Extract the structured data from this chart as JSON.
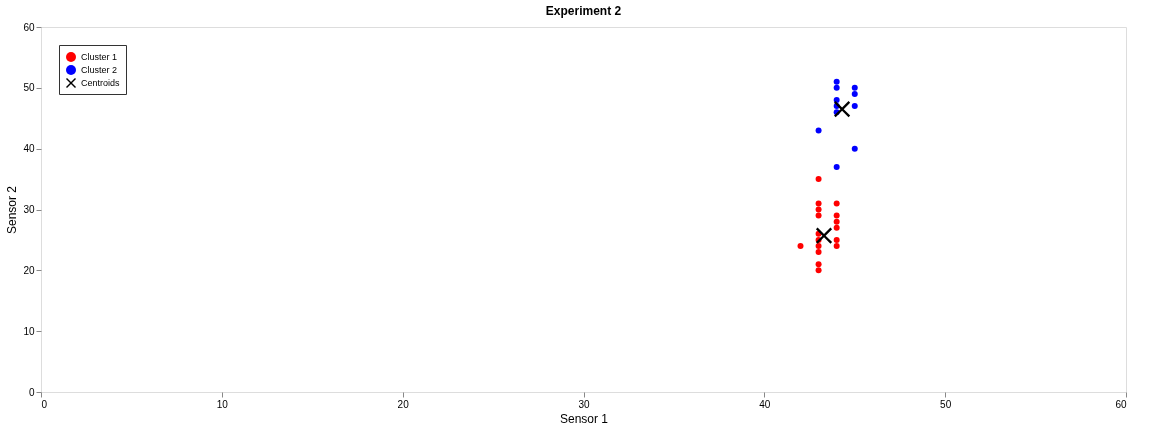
{
  "chart_data": {
    "type": "scatter",
    "title": "Experiment 2",
    "xlabel": "Sensor 1",
    "ylabel": "Sensor 2",
    "xlim": [
      0,
      60
    ],
    "ylim": [
      0,
      60
    ],
    "xticks": [
      0,
      10,
      20,
      30,
      40,
      50,
      60
    ],
    "yticks": [
      0,
      10,
      20,
      30,
      40,
      50,
      60
    ],
    "grid": false,
    "legend": "top left",
    "series": [
      {
        "name": "Cluster 1",
        "color": "#ff0000",
        "marker": "circle",
        "x": [
          43,
          43,
          43,
          43,
          43,
          43,
          43,
          43,
          43,
          43,
          44,
          44,
          44,
          44,
          44,
          44,
          42
        ],
        "values": [
          35,
          31,
          30,
          29,
          26,
          25,
          24,
          23,
          21,
          20,
          31,
          29,
          28,
          27,
          25,
          24,
          24
        ]
      },
      {
        "name": "Cluster 2",
        "color": "#0000ff",
        "marker": "circle",
        "x": [
          44,
          44,
          44,
          44,
          44,
          45,
          45,
          45,
          43,
          45,
          44
        ],
        "values": [
          51,
          50,
          48,
          47,
          46,
          50,
          49,
          47,
          43,
          40,
          37
        ]
      },
      {
        "name": "Centroids",
        "color": "#000000",
        "marker": "cross",
        "x": [
          44.3,
          43.3
        ],
        "values": [
          46.5,
          25.7
        ]
      }
    ]
  }
}
